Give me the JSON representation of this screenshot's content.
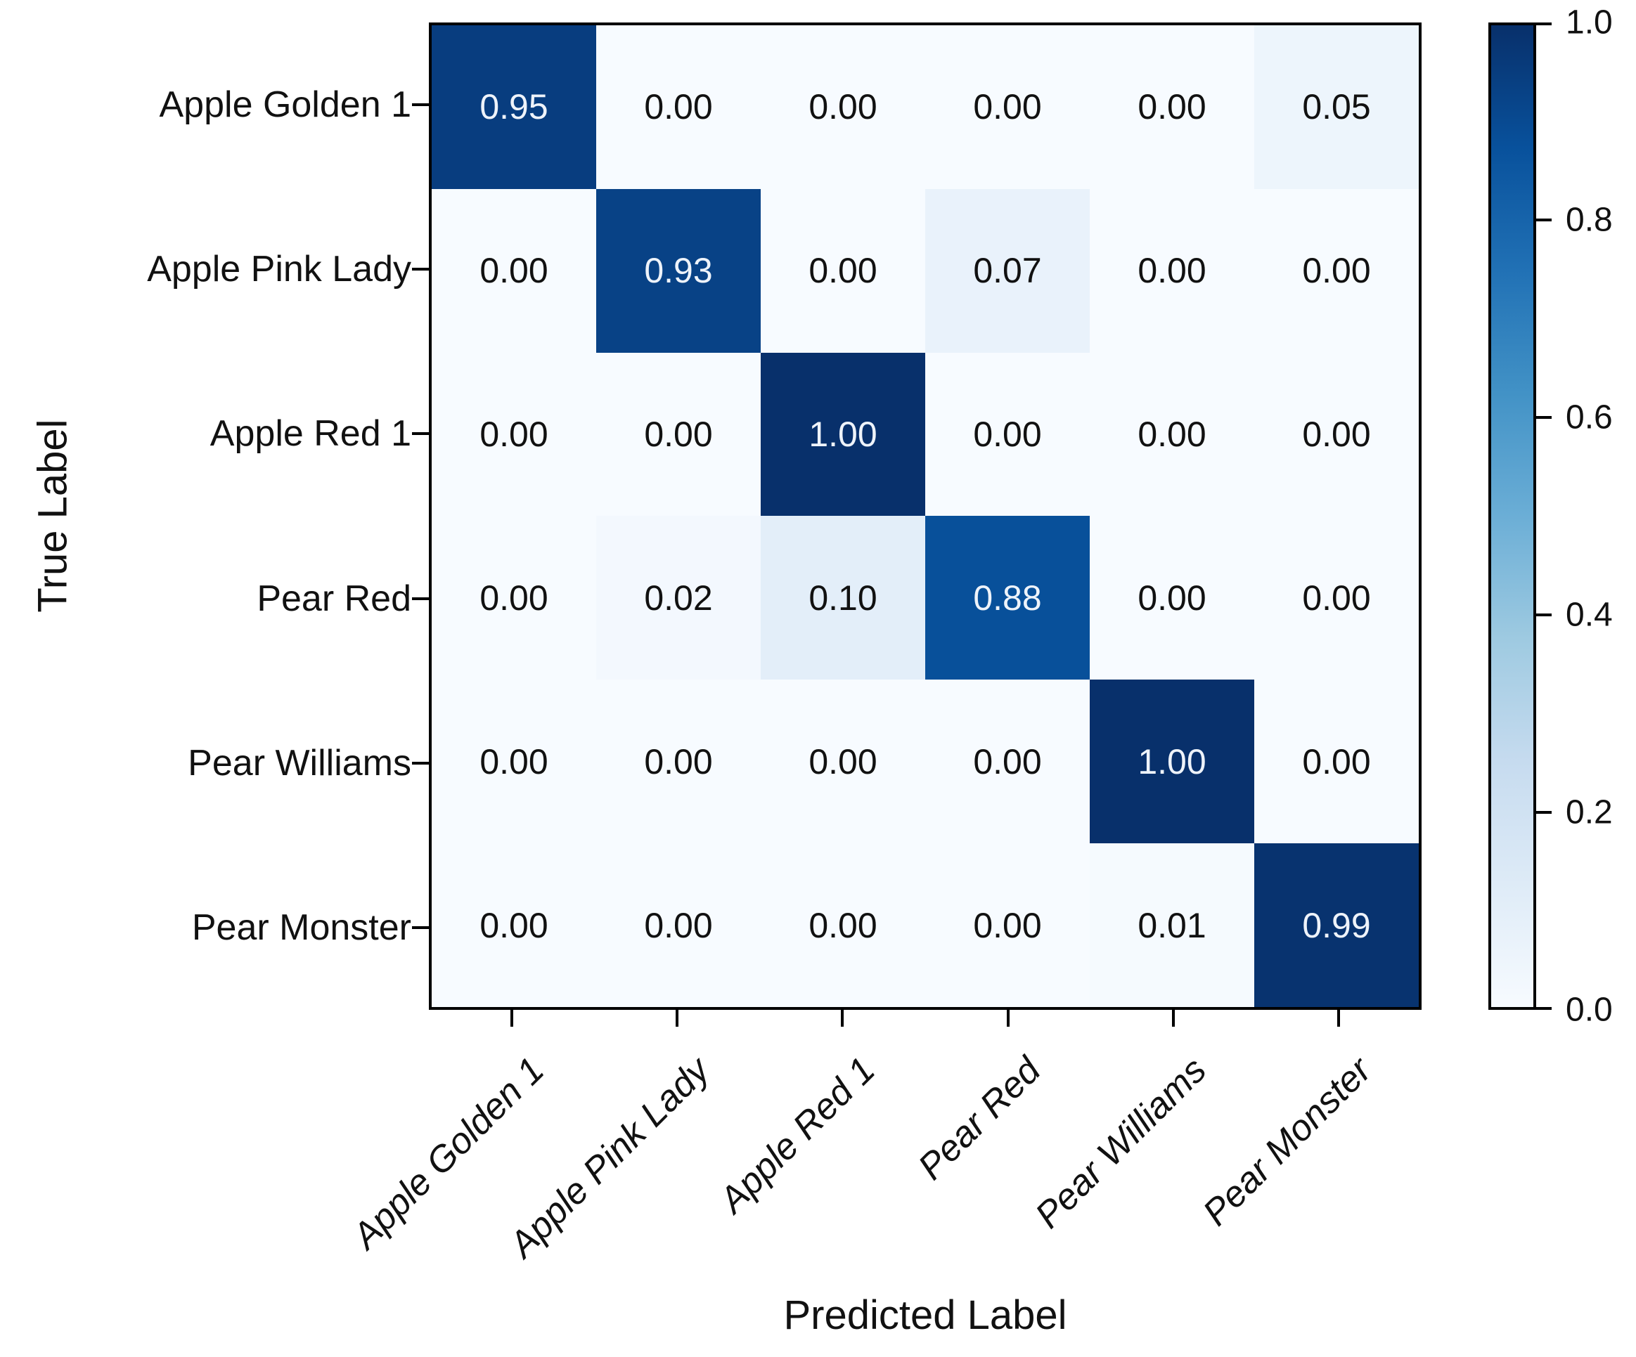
{
  "chart_data": {
    "type": "heatmap",
    "title": "",
    "xlabel": "Predicted Label",
    "ylabel": "True Label",
    "categories": [
      "Apple Golden 1",
      "Apple Pink Lady",
      "Apple Red 1",
      "Pear Red",
      "Pear Williams",
      "Pear Monster"
    ],
    "matrix": [
      [
        0.95,
        0.0,
        0.0,
        0.0,
        0.0,
        0.05
      ],
      [
        0.0,
        0.93,
        0.0,
        0.07,
        0.0,
        0.0
      ],
      [
        0.0,
        0.0,
        1.0,
        0.0,
        0.0,
        0.0
      ],
      [
        0.0,
        0.02,
        0.1,
        0.88,
        0.0,
        0.0
      ],
      [
        0.0,
        0.0,
        0.0,
        0.0,
        1.0,
        0.0
      ],
      [
        0.0,
        0.0,
        0.0,
        0.0,
        0.01,
        0.99
      ]
    ],
    "value_decimals": 2,
    "vmin": 0.0,
    "vmax": 1.0,
    "grid": false,
    "colormap": {
      "name": "Blues",
      "stops": [
        {
          "pos": 0.0,
          "color": "#f7fbff"
        },
        {
          "pos": 0.125,
          "color": "#deebf7"
        },
        {
          "pos": 0.25,
          "color": "#c6dbef"
        },
        {
          "pos": 0.375,
          "color": "#9ecae1"
        },
        {
          "pos": 0.5,
          "color": "#6baed6"
        },
        {
          "pos": 0.625,
          "color": "#4292c6"
        },
        {
          "pos": 0.75,
          "color": "#2171b5"
        },
        {
          "pos": 0.875,
          "color": "#08519c"
        },
        {
          "pos": 1.0,
          "color": "#08306b"
        }
      ]
    },
    "annotation_text_dark": "#111111",
    "annotation_text_light": "#eef3fa",
    "annotation_light_threshold": 0.5,
    "colorbar": {
      "position": "right",
      "tick_labels": [
        "0.0",
        "0.2",
        "0.4",
        "0.6",
        "0.8",
        "1.0"
      ],
      "tick_values": [
        0.0,
        0.2,
        0.4,
        0.6,
        0.8,
        1.0
      ]
    }
  }
}
